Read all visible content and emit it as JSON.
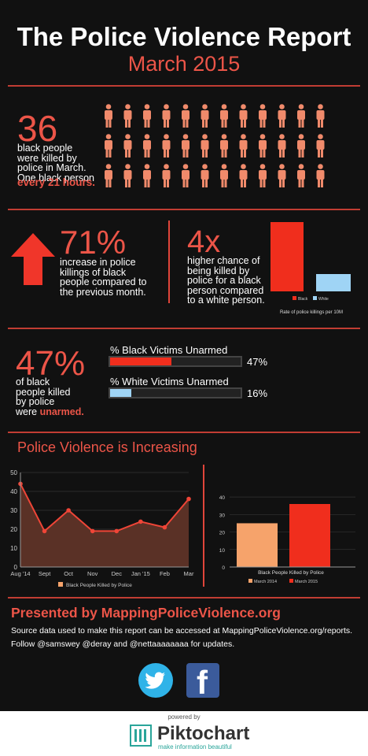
{
  "header": {
    "title": "The Police Violence Report",
    "subtitle": "March 2015"
  },
  "section1": {
    "number": "36",
    "text": [
      "black people",
      "were killed by",
      "police in March.",
      "One black person"
    ],
    "highlight": "every 21 hours.",
    "icon_count": 36
  },
  "section2": {
    "increase_number": "71%",
    "increase_text": [
      "increase in police",
      "killings of black",
      "people compared to",
      "the previous month."
    ],
    "chance_number": "4x",
    "chance_text": [
      "higher chance of",
      "being killed by",
      "police for a black",
      "person compared",
      "to a white person."
    ]
  },
  "section3": {
    "number": "47%",
    "text": [
      "of black",
      "people killed",
      "by police"
    ],
    "text_last": "were",
    "highlight": "unarmed.",
    "bars": [
      {
        "label": "% Black Victims Unarmed",
        "percent_label": "47%",
        "value": 0.47,
        "color": "#f02e1d"
      },
      {
        "label": "% White Victims Unarmed",
        "percent_label": "16%",
        "value": 0.16,
        "color": "#9fd4f5"
      }
    ]
  },
  "section4": {
    "heading": "Police Violence is Increasing"
  },
  "chart_data": [
    {
      "type": "bar",
      "categories": [
        "Black",
        "White"
      ],
      "values": [
        4,
        1
      ],
      "colors": [
        "#f02e1d",
        "#9fd4f5"
      ],
      "legend": [
        "Black",
        "White"
      ],
      "xlabel": "Rate of police killings per 10M",
      "grid": false
    },
    {
      "type": "area",
      "x": [
        "Aug '14",
        "Sept",
        "Oct",
        "Nov",
        "Dec",
        "Jan '15",
        "Feb",
        "Mar"
      ],
      "series": [
        {
          "name": "Black People Killed by Police",
          "values": [
            44,
            19,
            30,
            19,
            19,
            24,
            21,
            36
          ]
        }
      ],
      "yticks": [
        "0",
        "10",
        "20",
        "30",
        "40",
        "50"
      ],
      "ylim": [
        0,
        50
      ],
      "line_color": "#ef4537",
      "fill_color": "#5a3126",
      "grid": true,
      "legend_position": "bottom"
    },
    {
      "type": "bar",
      "categories": [
        "March 2014",
        "March 2015"
      ],
      "values": [
        25,
        36
      ],
      "colors": [
        "#f6a36b",
        "#f02e1d"
      ],
      "xlabel": "Black People Killed by Police",
      "legend": [
        "March 2014",
        "March 2015"
      ],
      "yticks": [
        "0",
        "10",
        "20",
        "30",
        "40"
      ],
      "ylim": [
        0,
        45
      ],
      "grid": true,
      "legend_position": "bottom"
    }
  ],
  "footer": {
    "presented": "Presented by MappingPoliceViolence.org",
    "line1": "Source data used to make this report can be accessed at MappingPoliceViolence.org/reports.",
    "line2": "Follow @samswey @deray and @nettaaaaaaaa for updates.",
    "powered_by": "powered by",
    "brand": "Piktochart",
    "tagline": "make information beautiful"
  }
}
